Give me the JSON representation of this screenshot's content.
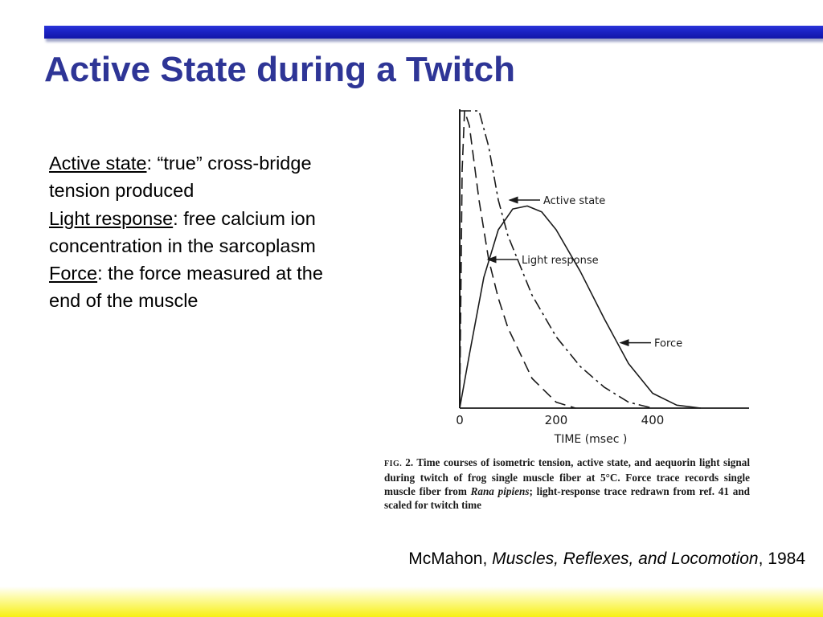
{
  "slide": {
    "title": "Active State during a Twitch"
  },
  "definitions": [
    {
      "term": "Active state",
      "desc": ": “true” cross-bridge tension produced"
    },
    {
      "term": "Light response",
      "desc": ": free calcium ion concentration in the sarcoplasm"
    },
    {
      "term": "Force",
      "desc": ": the force measured at the end of the muscle"
    }
  ],
  "chart_data": {
    "type": "line",
    "title": "",
    "xlabel": "TIME (msec )",
    "ylabel": "",
    "xlim": [
      0,
      600
    ],
    "x_ticks": [
      0,
      200,
      400
    ],
    "x_tick_labels": [
      "0",
      "200",
      "400"
    ],
    "grid": false,
    "series": [
      {
        "name": "Active state",
        "style": "dash-dot",
        "x": [
          0,
          10,
          20,
          40,
          60,
          80,
          100,
          150,
          200,
          250,
          300,
          350,
          400
        ],
        "y": [
          1.0,
          1.0,
          1.0,
          1.0,
          0.88,
          0.7,
          0.58,
          0.38,
          0.24,
          0.14,
          0.07,
          0.02,
          0.0
        ]
      },
      {
        "name": "Light response",
        "style": "dashed",
        "x": [
          0,
          5,
          10,
          20,
          40,
          60,
          80,
          100,
          150,
          200,
          240
        ],
        "y": [
          0.0,
          0.8,
          1.0,
          0.95,
          0.7,
          0.5,
          0.37,
          0.27,
          0.1,
          0.02,
          0.0
        ]
      },
      {
        "name": "Force",
        "style": "solid",
        "x": [
          0,
          20,
          50,
          80,
          110,
          140,
          170,
          200,
          250,
          300,
          350,
          400,
          450,
          500
        ],
        "y": [
          0.0,
          0.18,
          0.44,
          0.6,
          0.67,
          0.68,
          0.66,
          0.6,
          0.46,
          0.3,
          0.15,
          0.05,
          0.01,
          0.0
        ]
      }
    ],
    "annotations": [
      {
        "text": "Active state",
        "x": 100,
        "y": 0.7
      },
      {
        "text": "Light response",
        "x": 55,
        "y": 0.5
      },
      {
        "text": "Force",
        "x": 330,
        "y": 0.22
      }
    ]
  },
  "caption": {
    "label": "FIG.",
    "text_before": "2. Time courses of isometric tension, active state, and aequorin light signal during twitch of frog single muscle fiber at 5°C. Force trace records single muscle fiber from ",
    "species": "Rana pipiens",
    "text_after": "; light-response trace redrawn from ref. 41 and scaled for twitch time"
  },
  "citation": {
    "author": "McMahon, ",
    "book": "Muscles, Reflexes, and Locomotion",
    "year": ", 1984"
  }
}
